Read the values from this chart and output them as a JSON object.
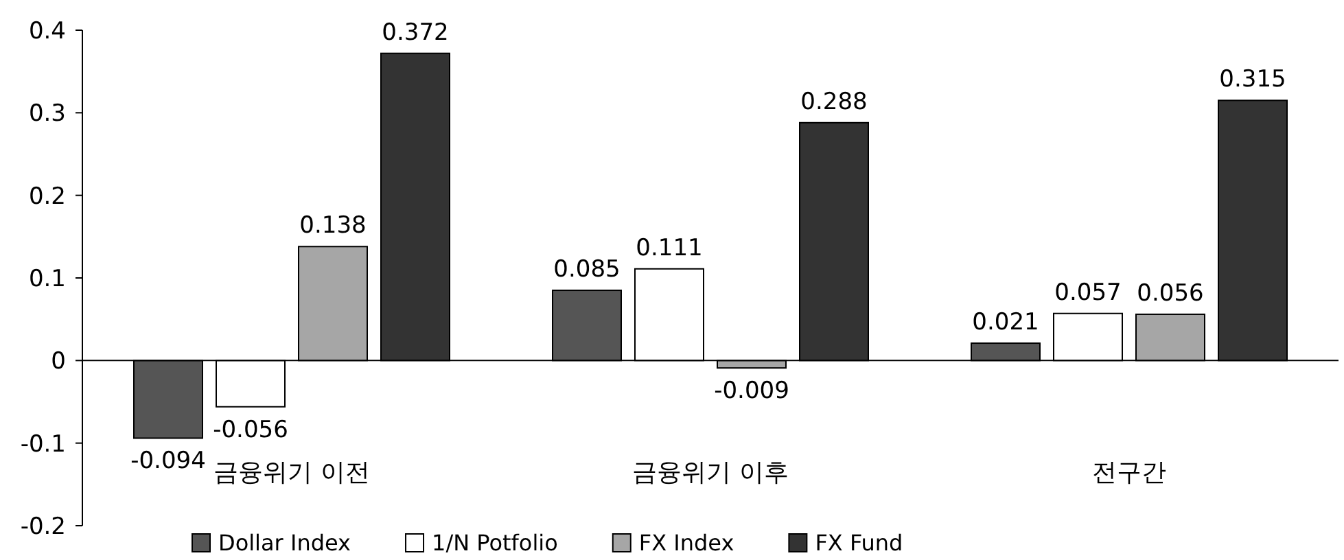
{
  "chart_data": {
    "type": "bar",
    "categories": [
      "금융위기 이전",
      "금융위기 이후",
      "전구간"
    ],
    "series": [
      {
        "name": "Dollar Index",
        "color": "#555555",
        "values": [
          -0.094,
          0.085,
          0.021
        ]
      },
      {
        "name": "1/N Potfolio",
        "color": "#ffffff",
        "values": [
          -0.056,
          0.111,
          0.057
        ]
      },
      {
        "name": "FX Index",
        "color": "#a6a6a6",
        "values": [
          0.138,
          -0.009,
          0.056
        ]
      },
      {
        "name": "FX Fund",
        "color": "#333333",
        "values": [
          0.372,
          0.288,
          0.315
        ]
      }
    ],
    "ylim": [
      -0.2,
      0.4
    ],
    "yticks": [
      -0.2,
      -0.1,
      0,
      0.1,
      0.2,
      0.3,
      0.4
    ],
    "data_labels": true,
    "legend": "bottom"
  }
}
